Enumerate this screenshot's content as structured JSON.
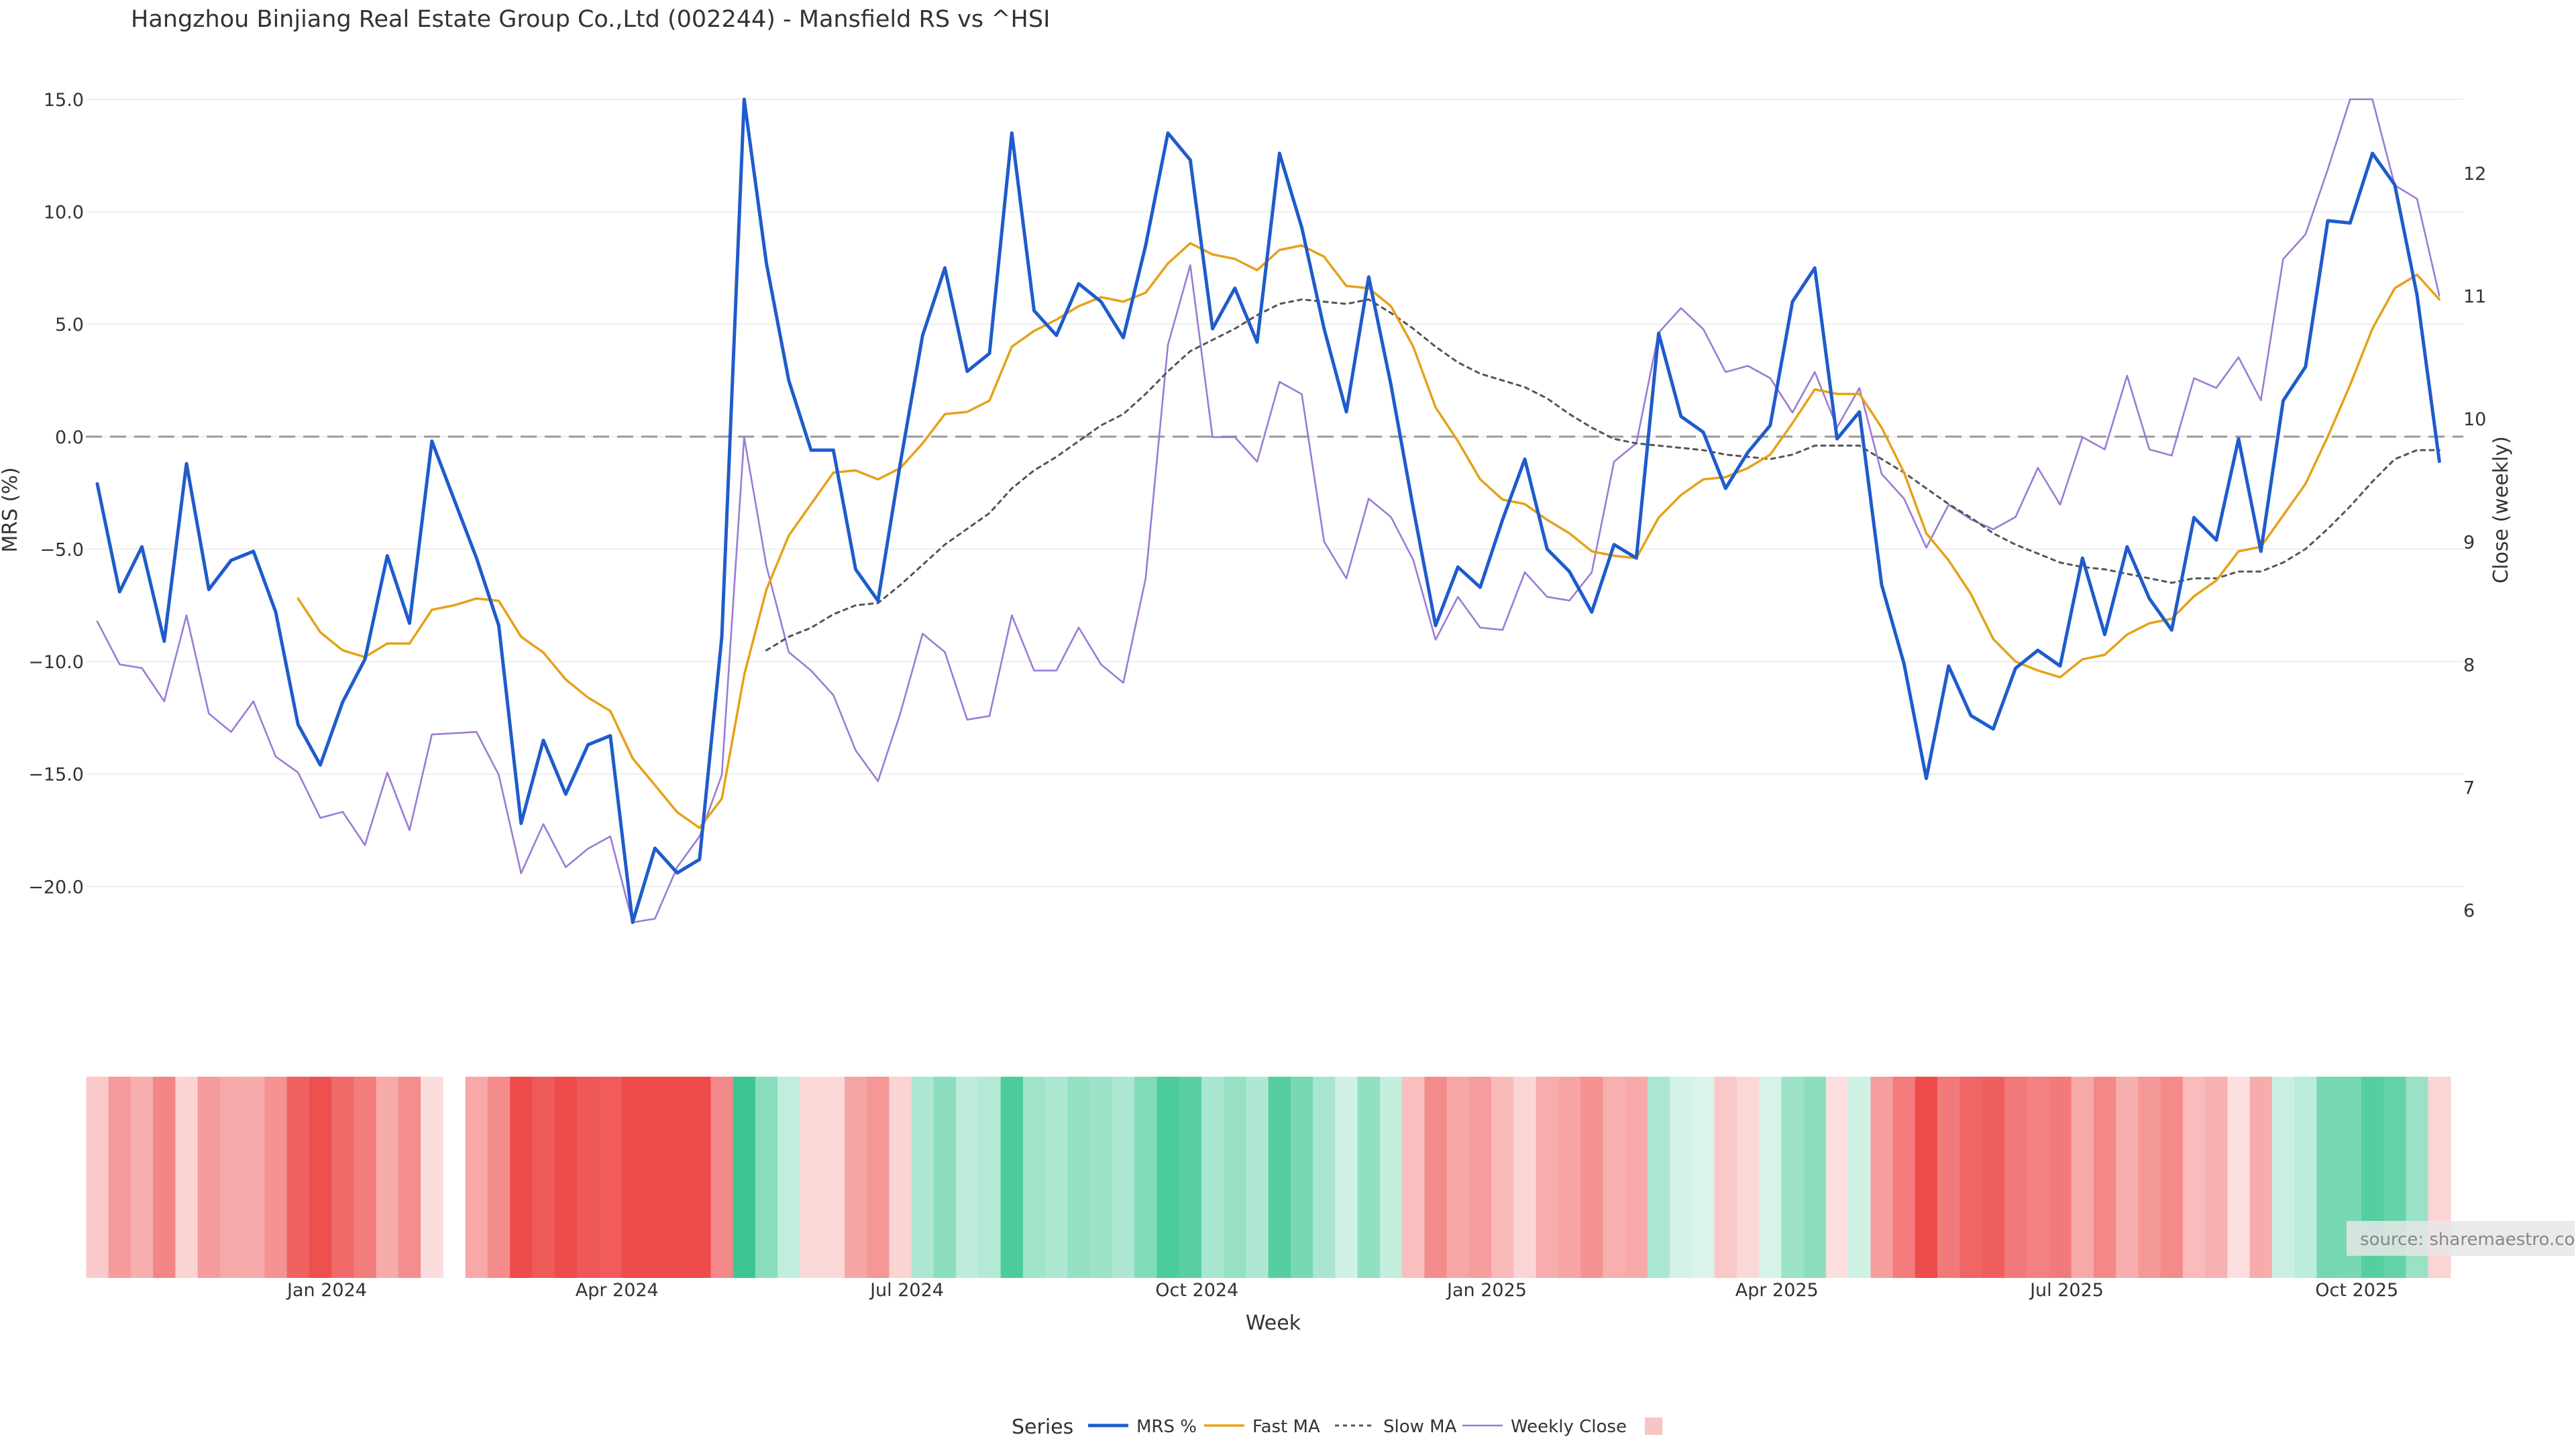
{
  "chart_data": {
    "type": "line",
    "title": "Hangzhou Binjiang Real Estate Group Co.,Ltd (002244) - Mansfield RS vs ^HSI",
    "xlabel": "Week",
    "ylabel_left": "MRS (%)",
    "ylabel_right": "Close (weekly)",
    "x_tick_labels": [
      "Jan 2024",
      "Apr 2024",
      "Jul 2024",
      "Oct 2024",
      "Jan 2025",
      "Apr 2025",
      "Jul 2025",
      "Oct 2025"
    ],
    "x_tick_week_index": [
      10,
      23,
      36,
      49,
      62,
      75,
      88,
      101
    ],
    "yticks_left": [
      15.0,
      10.0,
      5.0,
      0.0,
      -5.0,
      -10.0,
      -15.0,
      -20.0
    ],
    "yticks_left_labels": [
      "15.0",
      "10.0",
      "5.0",
      "0.0",
      "−5.0",
      "−10.0",
      "−15.0",
      "−20.0"
    ],
    "yticks_right": [
      6,
      7,
      8,
      9,
      10,
      11,
      12
    ],
    "ylim_left": [
      -21.6,
      15.0
    ],
    "ylim_right": [
      5.9,
      12.6
    ],
    "zero_line": 0,
    "grid": true,
    "legend_title": "Series",
    "legend_placement": "bottom-center",
    "series": [
      {
        "name": "MRS %",
        "axis": "left",
        "color": "#1f5bcc",
        "style": "solid-thick",
        "values": [
          -2.1,
          -6.9,
          -4.9,
          -9.1,
          -1.2,
          -6.8,
          -5.5,
          -5.1,
          -7.8,
          -12.8,
          -14.6,
          -11.8,
          -9.9,
          -5.3,
          -8.3,
          -0.2,
          -2.8,
          -5.4,
          -8.4,
          -17.2,
          -13.5,
          -15.9,
          -13.7,
          -13.3,
          -21.6,
          -18.3,
          -19.4,
          -18.8,
          -8.9,
          15.0,
          7.7,
          2.5,
          -0.6,
          -0.6,
          -5.9,
          -7.3,
          -1.2,
          4.5,
          7.5,
          2.9,
          3.7,
          13.5,
          5.6,
          4.5,
          6.8,
          6.0,
          4.4,
          8.5,
          13.5,
          12.3,
          4.8,
          6.6,
          4.2,
          12.6,
          9.3,
          4.8,
          1.1,
          7.1,
          2.3,
          -3.2,
          -8.4,
          -5.8,
          -6.7,
          -3.7,
          -1.0,
          -5.0,
          -6.0,
          -7.8,
          -4.8,
          -5.4,
          4.6,
          0.9,
          0.2,
          -2.3,
          -0.7,
          0.5,
          6.0,
          7.5,
          -0.1,
          1.1,
          -6.6,
          -10.1,
          -15.2,
          -10.2,
          -12.4,
          -13.0,
          -10.3,
          -9.5,
          -10.2,
          -5.4,
          -8.8,
          -4.9,
          -7.2,
          -8.6,
          -3.6,
          -4.6,
          -0.1,
          -5.1,
          1.6,
          3.1,
          9.6,
          9.5,
          12.6,
          11.2,
          6.3,
          -1.1
        ]
      },
      {
        "name": "Fast MA",
        "axis": "left",
        "color": "#e6a118",
        "style": "solid",
        "values": [
          null,
          null,
          null,
          null,
          null,
          null,
          null,
          null,
          null,
          -7.2,
          -8.7,
          -9.5,
          -9.8,
          -9.2,
          -9.2,
          -7.7,
          -7.5,
          -7.2,
          -7.3,
          -8.9,
          -9.6,
          -10.8,
          -11.6,
          -12.2,
          -14.3,
          -15.5,
          -16.7,
          -17.4,
          -16.1,
          -10.6,
          -6.8,
          -4.4,
          -3.0,
          -1.6,
          -1.5,
          -1.9,
          -1.4,
          -0.3,
          1.0,
          1.1,
          1.6,
          4.0,
          4.7,
          5.2,
          5.8,
          6.2,
          6.0,
          6.4,
          7.7,
          8.6,
          8.1,
          7.9,
          7.4,
          8.3,
          8.5,
          8.0,
          6.7,
          6.6,
          5.8,
          4.0,
          1.3,
          -0.2,
          -1.9,
          -2.8,
          -3.0,
          -3.7,
          -4.3,
          -5.1,
          -5.3,
          -5.4,
          -3.6,
          -2.6,
          -1.9,
          -1.8,
          -1.4,
          -0.8,
          0.6,
          2.1,
          1.9,
          1.9,
          0.4,
          -1.6,
          -4.3,
          -5.5,
          -7.0,
          -9.0,
          -10.0,
          -10.4,
          -10.7,
          -9.9,
          -9.7,
          -8.8,
          -8.3,
          -8.1,
          -7.1,
          -6.4,
          -5.1,
          -4.9,
          -3.5,
          -2.1,
          0.0,
          2.3,
          4.8,
          6.6,
          7.2,
          6.1
        ]
      },
      {
        "name": "Slow MA",
        "axis": "left",
        "color": "#555555",
        "style": "dotted",
        "values": [
          null,
          null,
          null,
          null,
          null,
          null,
          null,
          null,
          null,
          null,
          null,
          null,
          null,
          null,
          null,
          null,
          null,
          null,
          null,
          null,
          null,
          null,
          null,
          null,
          null,
          null,
          null,
          null,
          null,
          null,
          -9.5,
          -8.9,
          -8.5,
          -7.9,
          -7.5,
          -7.4,
          -6.6,
          -5.7,
          -4.8,
          -4.1,
          -3.4,
          -2.3,
          -1.5,
          -0.9,
          -0.2,
          0.5,
          1.0,
          1.9,
          2.9,
          3.8,
          4.3,
          4.8,
          5.4,
          5.9,
          6.1,
          6.0,
          5.9,
          6.1,
          5.5,
          4.8,
          4.0,
          3.3,
          2.8,
          2.5,
          2.2,
          1.7,
          1.0,
          0.4,
          -0.1,
          -0.3,
          -0.4,
          -0.5,
          -0.6,
          -0.8,
          -0.9,
          -1.0,
          -0.8,
          -0.4,
          -0.4,
          -0.4,
          -1.0,
          -1.6,
          -2.3,
          -3.0,
          -3.6,
          -4.3,
          -4.8,
          -5.2,
          -5.6,
          -5.8,
          -5.9,
          -6.1,
          -6.3,
          -6.5,
          -6.3,
          -6.3,
          -6.0,
          -6.0,
          -5.6,
          -5.0,
          -4.1,
          -3.1,
          -2.0,
          -1.0,
          -0.6,
          -0.6
        ]
      },
      {
        "name": "Weekly Close",
        "axis": "right",
        "color": "#9b7bd4",
        "style": "solid-thin",
        "values": [
          8.35,
          8.0,
          7.97,
          7.7,
          8.4,
          7.6,
          7.45,
          7.7,
          7.25,
          7.12,
          6.75,
          6.8,
          6.53,
          7.12,
          6.65,
          7.43,
          7.44,
          7.45,
          7.1,
          6.3,
          6.7,
          6.35,
          6.5,
          6.6,
          5.9,
          5.93,
          6.35,
          6.6,
          7.1,
          9.85,
          8.8,
          8.1,
          7.95,
          7.75,
          7.3,
          7.05,
          7.6,
          8.25,
          8.1,
          7.55,
          7.58,
          8.4,
          7.95,
          7.95,
          8.3,
          8.0,
          7.85,
          8.7,
          10.6,
          11.25,
          9.85,
          9.85,
          9.65,
          10.3,
          10.2,
          9.0,
          8.7,
          9.35,
          9.2,
          8.85,
          8.2,
          8.55,
          8.3,
          8.28,
          8.75,
          8.55,
          8.52,
          8.75,
          9.65,
          9.8,
          10.7,
          10.9,
          10.73,
          10.38,
          10.43,
          10.33,
          10.05,
          10.38,
          9.93,
          10.25,
          9.55,
          9.35,
          8.95,
          9.3,
          9.18,
          9.1,
          9.2,
          9.6,
          9.3,
          9.85,
          9.75,
          10.35,
          9.75,
          9.7,
          10.33,
          10.25,
          10.5,
          10.15,
          11.3,
          11.5,
          12.03,
          12.6,
          12.6,
          11.9,
          11.79,
          11.0
        ]
      }
    ],
    "heatmap_strip": {
      "description_source": "per-week color band beneath the chart, red when MRS is negative and green when MRS is positive; intensity follows magnitude",
      "negative_color": "#ee4b4b",
      "positive_color": "#3cc792",
      "gap_week_index": 16
    }
  },
  "source_text": "source: sharemaestro.com"
}
